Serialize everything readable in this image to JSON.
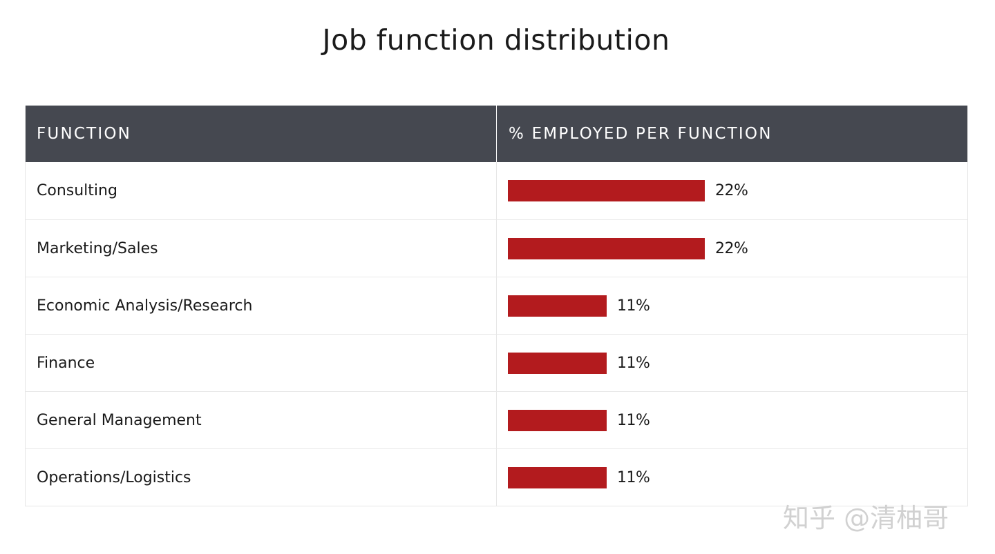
{
  "title": "Job function distribution",
  "columns": {
    "function": "FUNCTION",
    "percent": "% EMPLOYED PER FUNCTION"
  },
  "rows": [
    {
      "label": "Consulting",
      "value_label": "22%"
    },
    {
      "label": "Marketing/Sales",
      "value_label": "22%"
    },
    {
      "label": "Economic Analysis/Research",
      "value_label": "11%"
    },
    {
      "label": "Finance",
      "value_label": "11%"
    },
    {
      "label": "General Management",
      "value_label": "11%"
    },
    {
      "label": "Operations/Logistics",
      "value_label": "11%"
    }
  ],
  "chart_data": {
    "type": "bar",
    "orientation": "horizontal",
    "categories": [
      "Consulting",
      "Marketing/Sales",
      "Economic Analysis/Research",
      "Finance",
      "General Management",
      "Operations/Logistics"
    ],
    "values": [
      22,
      22,
      11,
      11,
      11,
      11
    ],
    "unit": "%",
    "title": "Job function distribution",
    "xlabel": "",
    "ylabel": "",
    "bar_color": "#b31b1e",
    "header_color": "#454850"
  },
  "watermark": "知乎 @清柚哥"
}
